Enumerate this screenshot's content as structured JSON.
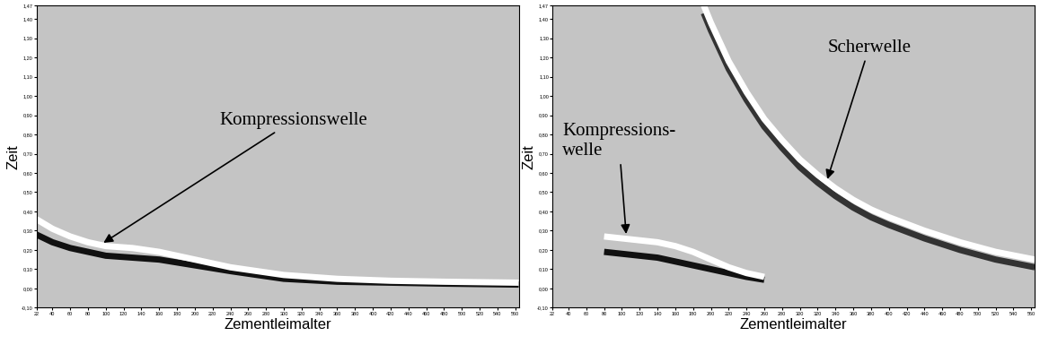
{
  "chart_data": [
    {
      "type": "line",
      "xlabel": "Zementleimalter",
      "ylabel": "Zeit",
      "xlim": [
        22,
        564
      ],
      "ylim": [
        -0.1,
        1.47
      ],
      "xticks": [
        22,
        40,
        60,
        80,
        100,
        120,
        140,
        160,
        180,
        200,
        220,
        240,
        260,
        280,
        300,
        320,
        340,
        360,
        380,
        400,
        420,
        440,
        460,
        480,
        500,
        520,
        540,
        560
      ],
      "yticks": [
        {
          "value": -0.1,
          "label": "-0,10"
        },
        {
          "value": 0,
          "label": "0,00"
        },
        {
          "value": 0.1,
          "label": "0,10"
        },
        {
          "value": 0.2,
          "label": "0,20"
        },
        {
          "value": 0.3,
          "label": "0,30"
        },
        {
          "value": 0.4,
          "label": "0,40"
        },
        {
          "value": 0.5,
          "label": "0,50"
        },
        {
          "value": 0.6,
          "label": "0,60"
        },
        {
          "value": 0.7,
          "label": "0,70"
        },
        {
          "value": 0.8,
          "label": "0,80"
        },
        {
          "value": 0.9,
          "label": "0,90"
        },
        {
          "value": 1.0,
          "label": "1,00"
        },
        {
          "value": 1.1,
          "label": "1,10"
        },
        {
          "value": 1.2,
          "label": "1,20"
        },
        {
          "value": 1.3,
          "label": "1,30"
        },
        {
          "value": 1.4,
          "label": "1,40"
        },
        {
          "value": 1.47,
          "label": "1,47"
        }
      ],
      "series": [
        {
          "color": "#111111",
          "x": [
            22,
            40,
            60,
            80,
            100,
            130,
            160,
            200,
            240,
            300,
            360,
            420,
            480,
            564
          ],
          "values": [
            0.28,
            0.24,
            0.21,
            0.19,
            0.17,
            0.16,
            0.15,
            0.12,
            0.09,
            0.05,
            0.035,
            0.03,
            0.025,
            0.02
          ]
        },
        {
          "color": "#ffffff",
          "x": [
            22,
            40,
            60,
            80,
            100,
            130,
            160,
            200,
            240,
            300,
            360,
            420,
            480,
            564
          ],
          "values": [
            0.36,
            0.31,
            0.27,
            0.24,
            0.22,
            0.21,
            0.19,
            0.15,
            0.11,
            0.07,
            0.05,
            0.04,
            0.035,
            0.03
          ]
        }
      ],
      "annotations": [
        {
          "text": "Kompressionswelle",
          "x": 95,
          "y": 0.23
        }
      ]
    },
    {
      "type": "line",
      "xlabel": "Zementleimalter",
      "ylabel": "Zeit",
      "xlim": [
        22,
        564
      ],
      "ylim": [
        -0.1,
        1.47
      ],
      "xticks": [
        22,
        40,
        60,
        80,
        100,
        120,
        140,
        160,
        180,
        200,
        220,
        240,
        260,
        280,
        300,
        320,
        340,
        360,
        380,
        400,
        420,
        440,
        460,
        480,
        500,
        520,
        540,
        560
      ],
      "yticks": [
        {
          "value": -0.1,
          "label": "-0,10"
        },
        {
          "value": 0,
          "label": "0,00"
        },
        {
          "value": 0.1,
          "label": "0,10"
        },
        {
          "value": 0.2,
          "label": "0,20"
        },
        {
          "value": 0.3,
          "label": "0,30"
        },
        {
          "value": 0.4,
          "label": "0,40"
        },
        {
          "value": 0.5,
          "label": "0,50"
        },
        {
          "value": 0.6,
          "label": "0,60"
        },
        {
          "value": 0.7,
          "label": "0,70"
        },
        {
          "value": 0.8,
          "label": "0,80"
        },
        {
          "value": 0.9,
          "label": "0,90"
        },
        {
          "value": 1.0,
          "label": "1,00"
        },
        {
          "value": 1.1,
          "label": "1,10"
        },
        {
          "value": 1.2,
          "label": "1,20"
        },
        {
          "value": 1.3,
          "label": "1,30"
        },
        {
          "value": 1.4,
          "label": "1,40"
        },
        {
          "value": 1.47,
          "label": "1,47"
        }
      ],
      "series": [
        {
          "color": "#111111",
          "x": [
            80,
            100,
            120,
            140,
            160,
            180,
            200,
            220,
            240,
            260
          ],
          "values": [
            0.19,
            0.18,
            0.17,
            0.16,
            0.14,
            0.12,
            0.1,
            0.08,
            0.06,
            0.045
          ]
        },
        {
          "color": "#ffffff",
          "x": [
            80,
            100,
            120,
            140,
            160,
            180,
            200,
            220,
            240,
            260
          ],
          "values": [
            0.27,
            0.26,
            0.25,
            0.24,
            0.22,
            0.19,
            0.15,
            0.11,
            0.08,
            0.06
          ]
        },
        {
          "color": "#333333",
          "x": [
            192,
            200,
            220,
            240,
            260,
            280,
            300,
            320,
            340,
            360,
            380,
            400,
            440,
            480,
            520,
            564
          ],
          "values": [
            1.43,
            1.34,
            1.14,
            0.98,
            0.84,
            0.73,
            0.63,
            0.55,
            0.48,
            0.42,
            0.37,
            0.33,
            0.26,
            0.2,
            0.15,
            0.11
          ]
        },
        {
          "color": "#ffffff",
          "x": [
            192,
            200,
            220,
            240,
            260,
            280,
            300,
            320,
            340,
            360,
            380,
            400,
            440,
            480,
            520,
            564
          ],
          "values": [
            1.47,
            1.38,
            1.18,
            1.02,
            0.88,
            0.77,
            0.67,
            0.59,
            0.52,
            0.46,
            0.41,
            0.37,
            0.3,
            0.24,
            0.19,
            0.15
          ]
        }
      ],
      "annotations": [
        {
          "text": "Kompressions-\nwelle",
          "x": 105,
          "y": 0.27
        },
        {
          "text": "Scherwelle",
          "x": 330,
          "y": 0.555
        }
      ]
    }
  ]
}
